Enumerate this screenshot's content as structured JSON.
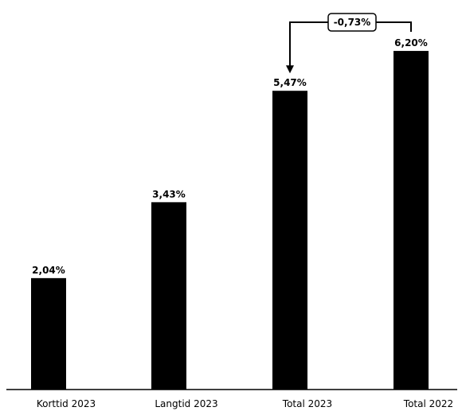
{
  "chart_data": {
    "type": "bar",
    "categories": [
      "Korttid 2023",
      "Langtid 2023",
      "Total 2023",
      "Total 2022"
    ],
    "values": [
      2.04,
      3.43,
      5.47,
      6.2
    ],
    "value_labels": [
      "2,04%",
      "3,43%",
      "5,47%",
      "6,20%"
    ],
    "bar_color": "#000000",
    "ylim": [
      0,
      7
    ],
    "grid": false,
    "annotation": {
      "text": "-0,73%",
      "from_category": "Total 2022",
      "to_category": "Total 2023"
    }
  }
}
